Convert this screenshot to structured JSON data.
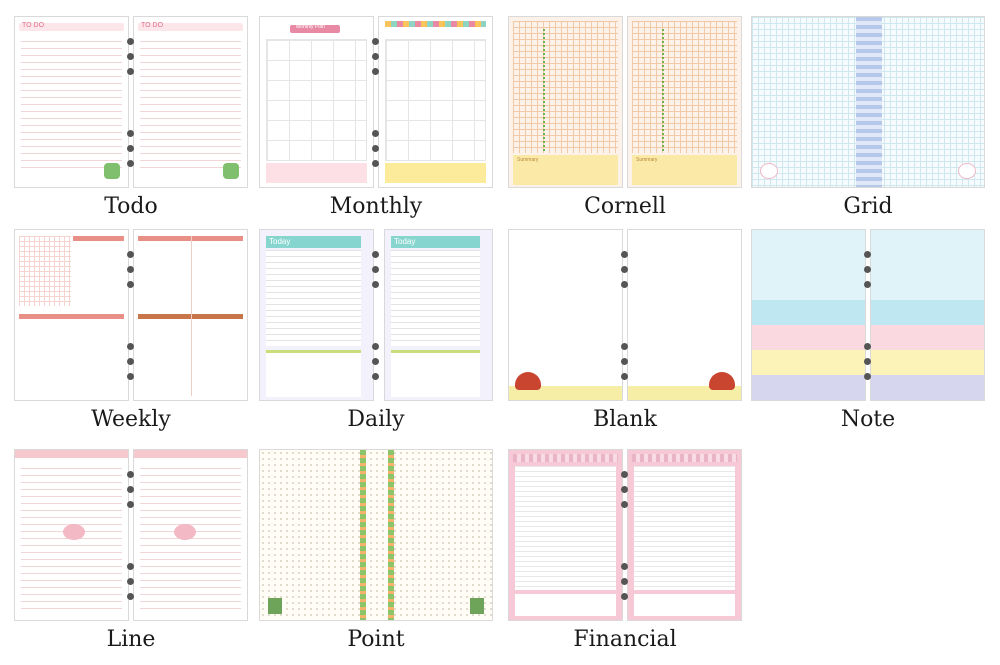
{
  "items": [
    {
      "label": "Todo",
      "header_text": "TO DO"
    },
    {
      "label": "Monthly",
      "header_text": "Monthly Plan"
    },
    {
      "label": "Cornell",
      "header_text": "Summary"
    },
    {
      "label": "Grid"
    },
    {
      "label": "Weekly"
    },
    {
      "label": "Daily",
      "header_text": "Today"
    },
    {
      "label": "Blank"
    },
    {
      "label": "Note"
    },
    {
      "label": "Line"
    },
    {
      "label": "Point"
    },
    {
      "label": "Financial"
    }
  ],
  "colors": {
    "todo": "#f4a3b6",
    "monthly": "#e98aa4",
    "cornell": "#fbe9a8",
    "grid": "#cfe7ef",
    "weekly": "#e88f86",
    "daily": "#86d5cf",
    "blank": "#f6eda7",
    "note": "#bfe7f2",
    "line": "#f6c9cf",
    "point": "#8cc46a",
    "financial": "#f7c8d6"
  }
}
